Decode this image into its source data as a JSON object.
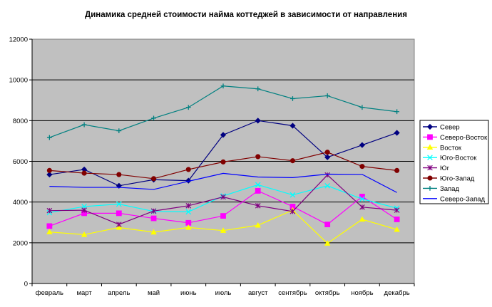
{
  "chart_data": {
    "type": "line",
    "title": "Динамика средней стоимости найма коттеджей в зависимости от направления",
    "categories": [
      "февраль",
      "март",
      "апрель",
      "май",
      "июнь",
      "июль",
      "август",
      "сентябрь",
      "октябрь",
      "ноябрь",
      "декабрь"
    ],
    "ylim": [
      0,
      12000
    ],
    "yticks": [
      0,
      2000,
      4000,
      6000,
      8000,
      10000,
      12000
    ],
    "grid": true,
    "plot_background": "#c0c0c0",
    "legend_position": "right",
    "series": [
      {
        "name": "Север",
        "color": "#000080",
        "marker": "diamond",
        "values": [
          5350,
          5600,
          4800,
          5100,
          5050,
          7300,
          8000,
          7750,
          6200,
          6800,
          7400
        ]
      },
      {
        "name": "Северо-Восток",
        "color": "#ff00ff",
        "marker": "square",
        "values": [
          2820,
          3450,
          3450,
          3200,
          2980,
          3320,
          4550,
          3780,
          2900,
          4270,
          3150
        ]
      },
      {
        "name": "Восток",
        "color": "#ffff00",
        "marker": "triangle",
        "values": [
          2530,
          2400,
          2750,
          2520,
          2750,
          2600,
          2860,
          3600,
          1970,
          3150,
          2650
        ]
      },
      {
        "name": "Юго-Восток",
        "color": "#00ffff",
        "marker": "x",
        "values": [
          3480,
          3780,
          3900,
          3540,
          3520,
          4300,
          4850,
          4350,
          4800,
          4150,
          3700
        ]
      },
      {
        "name": "Юг",
        "color": "#800080",
        "marker": "star",
        "values": [
          3580,
          3600,
          2900,
          3560,
          3820,
          4250,
          3820,
          3540,
          5330,
          3750,
          3600
        ]
      },
      {
        "name": "Юго-Запад",
        "color": "#800000",
        "marker": "circle",
        "values": [
          5550,
          5420,
          5350,
          5150,
          5600,
          5970,
          6230,
          6030,
          6450,
          5750,
          5550
        ]
      },
      {
        "name": "Запад",
        "color": "#008080",
        "marker": "plus",
        "values": [
          7170,
          7800,
          7500,
          8120,
          8650,
          9700,
          9560,
          9080,
          9220,
          8650,
          8440
        ]
      },
      {
        "name": "Северо-Запад",
        "color": "#0000ff",
        "marker": "none",
        "values": [
          4770,
          4720,
          4720,
          4620,
          5020,
          5410,
          5230,
          5200,
          5370,
          5360,
          4470
        ]
      }
    ]
  }
}
